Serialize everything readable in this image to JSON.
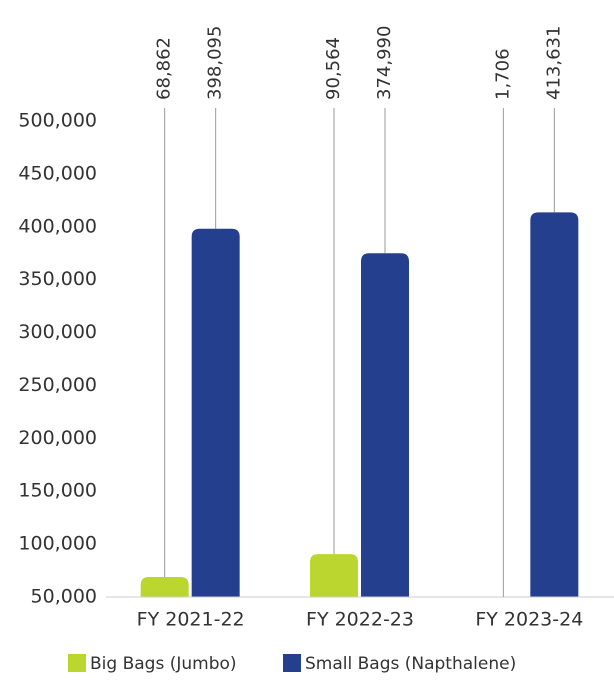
{
  "chart_data": {
    "type": "bar",
    "categories": [
      "FY 2021-22",
      "FY 2022-23",
      "FY 2023-24"
    ],
    "series": [
      {
        "name": "Big Bags (Jumbo)",
        "color": "#bcd630",
        "values": [
          68862,
          90564,
          1706
        ],
        "value_labels": [
          "68,862",
          "90,564",
          "1,706"
        ]
      },
      {
        "name": "Small Bags (Napthalene)",
        "color": "#253f8f",
        "values": [
          398095,
          374990,
          413631
        ],
        "value_labels": [
          "398,095",
          "374,990",
          "413,631"
        ]
      }
    ],
    "ylim": [
      50000,
      500000
    ],
    "yticks": [
      {
        "value": 50000,
        "label": "50,000"
      },
      {
        "value": 100000,
        "label": "100,000"
      },
      {
        "value": 150000,
        "label": "150,000"
      },
      {
        "value": 200000,
        "label": "200,000"
      },
      {
        "value": 250000,
        "label": "250,000"
      },
      {
        "value": 300000,
        "label": "300,000"
      },
      {
        "value": 350000,
        "label": "350,000"
      },
      {
        "value": 400000,
        "label": "400,000"
      },
      {
        "value": 450000,
        "label": "450,000"
      },
      {
        "value": 500000,
        "label": "500,000"
      }
    ],
    "grid": false
  }
}
